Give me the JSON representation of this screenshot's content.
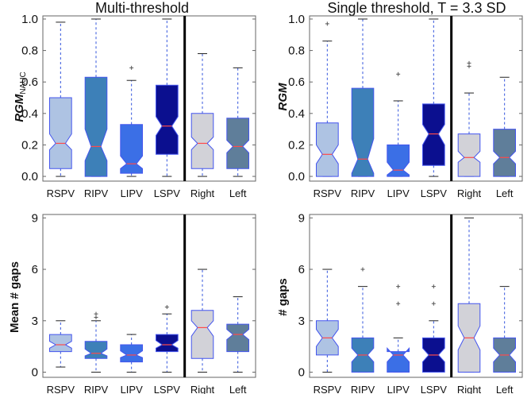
{
  "panel_titles": {
    "multi": "Multi-threshold",
    "single": "Single threshold, T = 3.3 SD"
  },
  "ylabels": {
    "rgm_nauc_main": "RGM",
    "rgm_nauc_sub": "NAUC",
    "rgm": "RGM",
    "mean_gaps": "Mean # gaps",
    "gaps": "# gaps"
  },
  "colors": {
    "RSPV": "#aec3e3",
    "RIPV": "#3d80b8",
    "LIPV": "#3b6fe6",
    "LSPV": "#0b0f8f",
    "Right": "#d2d2d8",
    "Left": "#5f7e9a",
    "median": "#ff4a4a",
    "whisker": "#3355dd",
    "box_edge": "#4455ee",
    "outlier": "#555555"
  },
  "chart_data": [
    {
      "type": "box",
      "title": "Multi-threshold",
      "ylabel": "RGM NAUC",
      "ylim": [
        -0.03,
        1.02
      ],
      "yticks": [
        "0.0",
        "0.2",
        "0.4",
        "0.6",
        "0.8",
        "1.0"
      ],
      "categories": [
        "RSPV",
        "RIPV",
        "LIPV",
        "LSPV",
        "Right",
        "Left"
      ],
      "divider_after": "LSPV",
      "boxes": [
        {
          "name": "RSPV",
          "q1": 0.05,
          "median": 0.21,
          "q3": 0.5,
          "notch_lo": 0.17,
          "notch_hi": 0.27,
          "whisker_lo": 0.0,
          "whisker_hi": 0.98,
          "outliers": []
        },
        {
          "name": "RIPV",
          "q1": 0.0,
          "median": 0.19,
          "q3": 0.63,
          "notch_lo": 0.1,
          "notch_hi": 0.3,
          "whisker_lo": 0.0,
          "whisker_hi": 1.0,
          "outliers": []
        },
        {
          "name": "LIPV",
          "q1": 0.02,
          "median": 0.08,
          "q3": 0.33,
          "notch_lo": 0.05,
          "notch_hi": 0.13,
          "whisker_lo": 0.0,
          "whisker_hi": 0.61,
          "outliers": [
            0.69
          ]
        },
        {
          "name": "LSPV",
          "q1": 0.14,
          "median": 0.32,
          "q3": 0.58,
          "notch_lo": 0.26,
          "notch_hi": 0.38,
          "whisker_lo": 0.0,
          "whisker_hi": 1.0,
          "outliers": []
        },
        {
          "name": "Right",
          "q1": 0.05,
          "median": 0.21,
          "q3": 0.4,
          "notch_lo": 0.17,
          "notch_hi": 0.25,
          "whisker_lo": 0.0,
          "whisker_hi": 0.78,
          "outliers": []
        },
        {
          "name": "Left",
          "q1": 0.05,
          "median": 0.19,
          "q3": 0.37,
          "notch_lo": 0.15,
          "notch_hi": 0.23,
          "whisker_lo": 0.0,
          "whisker_hi": 0.69,
          "outliers": []
        }
      ]
    },
    {
      "type": "box",
      "title": "Single threshold, T = 3.3 SD",
      "ylabel": "RGM",
      "ylim": [
        -0.03,
        1.02
      ],
      "yticks": [
        "0.0",
        "0.2",
        "0.4",
        "0.6",
        "0.8",
        "1.0"
      ],
      "categories": [
        "RSPV",
        "RIPV",
        "LIPV",
        "LSPV",
        "Right",
        "Left"
      ],
      "divider_after": "LSPV",
      "boxes": [
        {
          "name": "RSPV",
          "q1": 0.0,
          "median": 0.14,
          "q3": 0.34,
          "notch_lo": 0.08,
          "notch_hi": 0.2,
          "whisker_lo": 0.0,
          "whisker_hi": 0.86,
          "outliers": [
            0.97
          ]
        },
        {
          "name": "RIPV",
          "q1": 0.0,
          "median": 0.11,
          "q3": 0.56,
          "notch_lo": 0.02,
          "notch_hi": 0.24,
          "whisker_lo": 0.0,
          "whisker_hi": 1.0,
          "outliers": []
        },
        {
          "name": "LIPV",
          "q1": 0.0,
          "median": 0.04,
          "q3": 0.2,
          "notch_lo": 0.01,
          "notch_hi": 0.09,
          "whisker_lo": 0.0,
          "whisker_hi": 0.48,
          "outliers": [
            0.65
          ]
        },
        {
          "name": "LSPV",
          "q1": 0.07,
          "median": 0.27,
          "q3": 0.46,
          "notch_lo": 0.2,
          "notch_hi": 0.33,
          "whisker_lo": 0.0,
          "whisker_hi": 1.0,
          "outliers": []
        },
        {
          "name": "Right",
          "q1": 0.0,
          "median": 0.12,
          "q3": 0.27,
          "notch_lo": 0.09,
          "notch_hi": 0.16,
          "whisker_lo": 0.0,
          "whisker_hi": 0.53,
          "outliers": [
            0.7,
            0.72
          ]
        },
        {
          "name": "Left",
          "q1": 0.0,
          "median": 0.12,
          "q3": 0.3,
          "notch_lo": 0.08,
          "notch_hi": 0.16,
          "whisker_lo": 0.0,
          "whisker_hi": 0.63,
          "outliers": []
        }
      ]
    },
    {
      "type": "box",
      "title": "",
      "ylabel": "Mean # gaps",
      "ylim": [
        -0.3,
        9.2
      ],
      "yticks": [
        "0",
        "3",
        "6",
        "9"
      ],
      "categories": [
        "RSPV",
        "RIPV",
        "LIPV",
        "LSPV",
        "Right",
        "Left"
      ],
      "divider_after": "LSPV",
      "boxes": [
        {
          "name": "RSPV",
          "q1": 1.2,
          "median": 1.6,
          "q3": 2.2,
          "notch_lo": 1.4,
          "notch_hi": 1.8,
          "whisker_lo": 0.3,
          "whisker_hi": 3.0,
          "outliers": []
        },
        {
          "name": "RIPV",
          "q1": 0.8,
          "median": 1.1,
          "q3": 1.8,
          "notch_lo": 0.95,
          "notch_hi": 1.35,
          "whisker_lo": 0.0,
          "whisker_hi": 3.0,
          "outliers": [
            3.2,
            3.4
          ]
        },
        {
          "name": "LIPV",
          "q1": 0.6,
          "median": 1.0,
          "q3": 1.6,
          "notch_lo": 0.85,
          "notch_hi": 1.25,
          "whisker_lo": 0.0,
          "whisker_hi": 2.2,
          "outliers": []
        },
        {
          "name": "LSPV",
          "q1": 1.2,
          "median": 1.6,
          "q3": 2.2,
          "notch_lo": 1.4,
          "notch_hi": 1.85,
          "whisker_lo": 0.0,
          "whisker_hi": 3.4,
          "outliers": [
            3.8
          ]
        },
        {
          "name": "Right",
          "q1": 0.8,
          "median": 2.6,
          "q3": 3.6,
          "notch_lo": 2.1,
          "notch_hi": 3.0,
          "whisker_lo": 0.0,
          "whisker_hi": 6.0,
          "outliers": []
        },
        {
          "name": "Left",
          "q1": 1.2,
          "median": 2.2,
          "q3": 2.8,
          "notch_lo": 1.9,
          "notch_hi": 2.5,
          "whisker_lo": 0.0,
          "whisker_hi": 4.4,
          "outliers": []
        }
      ]
    },
    {
      "type": "box",
      "title": "",
      "ylabel": "# gaps",
      "ylim": [
        -0.3,
        9.2
      ],
      "yticks": [
        "0",
        "3",
        "6",
        "9"
      ],
      "categories": [
        "RSPV",
        "RIPV",
        "LIPV",
        "LSPV",
        "Right",
        "Left"
      ],
      "divider_after": "LSPV",
      "boxes": [
        {
          "name": "RSPV",
          "q1": 1.0,
          "median": 2.0,
          "q3": 3.0,
          "notch_lo": 1.5,
          "notch_hi": 2.5,
          "whisker_lo": 0.0,
          "whisker_hi": 6.0,
          "outliers": []
        },
        {
          "name": "RIPV",
          "q1": 0.0,
          "median": 1.0,
          "q3": 2.0,
          "notch_lo": 0.6,
          "notch_hi": 1.4,
          "whisker_lo": 0.0,
          "whisker_hi": 5.0,
          "outliers": [
            6.0
          ]
        },
        {
          "name": "LIPV",
          "q1": 0.0,
          "median": 1.0,
          "q3": 1.2,
          "notch_lo": 0.6,
          "notch_hi": 1.4,
          "whisker_lo": 0.0,
          "whisker_hi": 2.0,
          "outliers": [
            4.0,
            5.0
          ]
        },
        {
          "name": "LSPV",
          "q1": 0.0,
          "median": 1.0,
          "q3": 2.0,
          "notch_lo": 0.6,
          "notch_hi": 1.4,
          "whisker_lo": 0.0,
          "whisker_hi": 3.0,
          "outliers": [
            4.0,
            5.0
          ]
        },
        {
          "name": "Right",
          "q1": 0.0,
          "median": 2.0,
          "q3": 4.0,
          "notch_lo": 1.3,
          "notch_hi": 2.7,
          "whisker_lo": 0.0,
          "whisker_hi": 9.0,
          "outliers": []
        },
        {
          "name": "Left",
          "q1": 0.0,
          "median": 1.0,
          "q3": 2.0,
          "notch_lo": 0.6,
          "notch_hi": 1.4,
          "whisker_lo": 0.0,
          "whisker_hi": 5.0,
          "outliers": []
        }
      ]
    }
  ]
}
